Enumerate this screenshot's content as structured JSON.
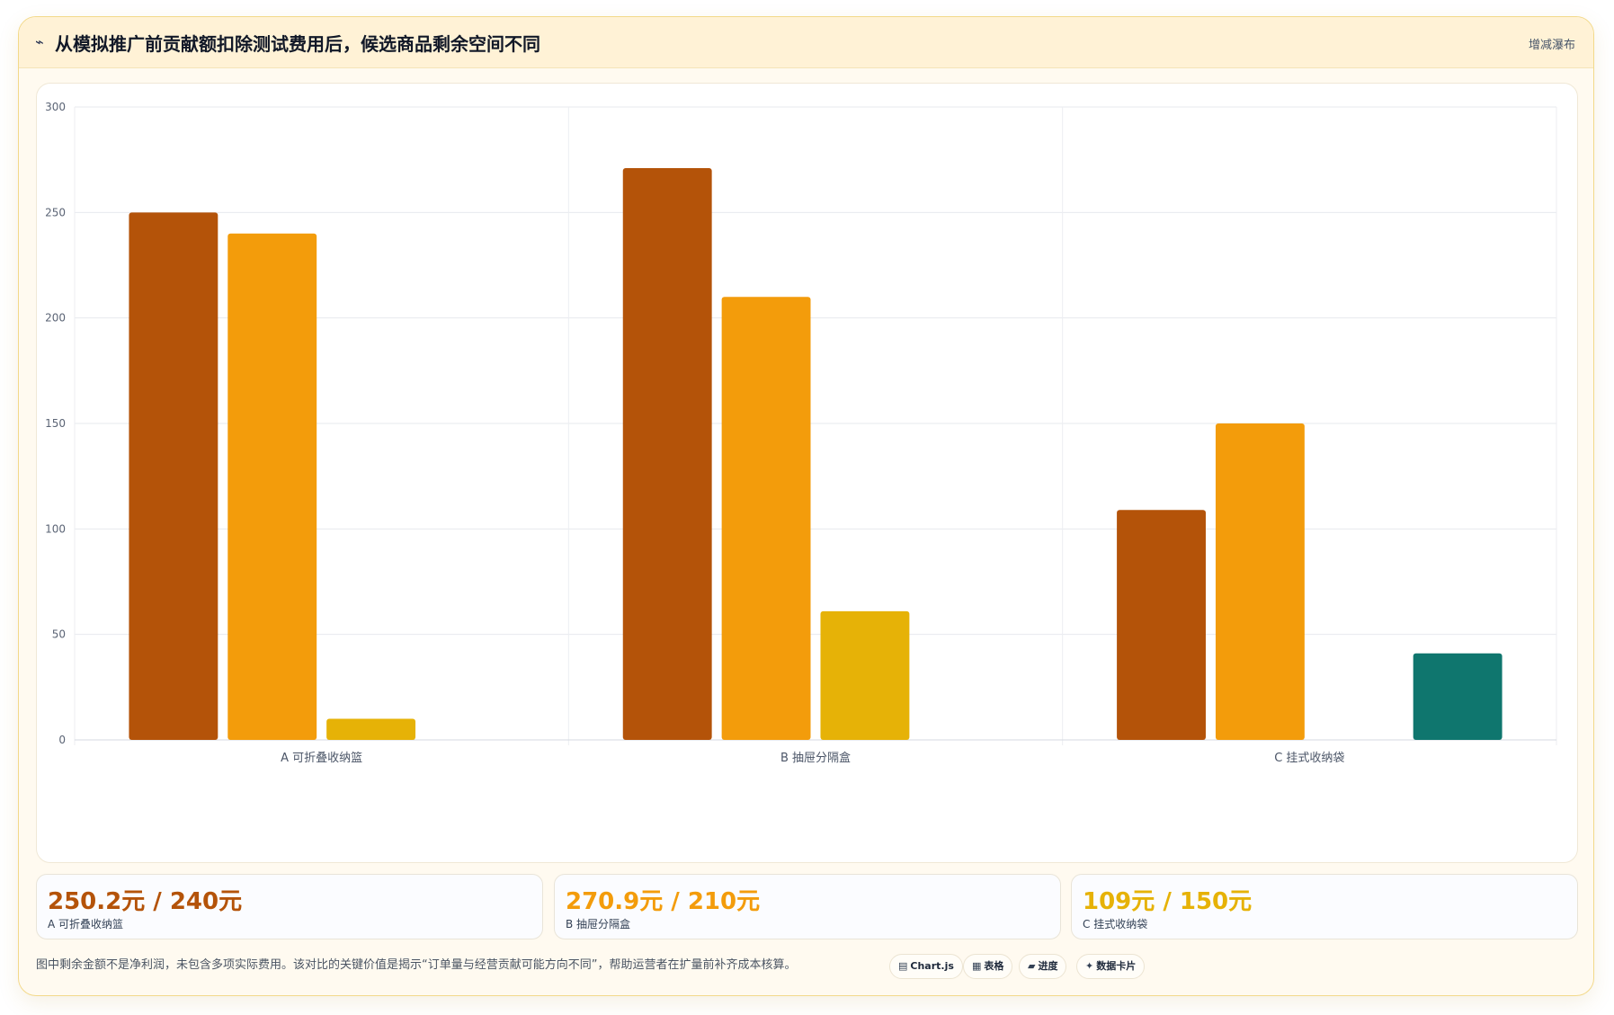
{
  "header": {
    "icon": "trend-line-icon",
    "title": "从模拟推广前贡献额扣除测试费用后，候选商品剩余空间不同",
    "badge": "增减瀑布"
  },
  "colors": {
    "dark_orange": "#b45309",
    "orange": "#f39c0b",
    "gold": "#e6b207",
    "teal": "#0f766e"
  },
  "chart_data": {
    "type": "bar",
    "categories": [
      "A 可折叠收纳篮",
      "B 抽屉分隔盒",
      "C 挂式收纳袋"
    ],
    "series": [
      {
        "values": [
          250,
          271,
          109
        ],
        "color": "#b45309"
      },
      {
        "values": [
          240,
          210,
          150
        ],
        "color": "#f39c0b"
      },
      {
        "values": [
          10,
          61,
          0
        ],
        "color": "#e6b207"
      },
      {
        "values": [
          0,
          0,
          41
        ],
        "color": "#0f766e"
      }
    ],
    "ylim": [
      0,
      300
    ],
    "yticks": [
      0,
      50,
      100,
      150,
      200,
      250,
      300
    ],
    "grid": true,
    "legend": "none",
    "title": "",
    "xlabel": "",
    "ylabel": ""
  },
  "stats": [
    {
      "value": "250.2元 / 240元",
      "label": "A 可折叠收纳篮",
      "color": "#b45309"
    },
    {
      "value": "270.9元 / 210元",
      "label": "B 抽屉分隔盒",
      "color": "#f39c0b"
    },
    {
      "value": "109元 / 150元",
      "label": "C 挂式收纳袋",
      "color": "#e6b207"
    }
  ],
  "footer": {
    "note": "图中剩余金额不是净利润，未包含多项实际费用。该对比的关键价值是揭示“订单量与经营贡献可能方向不同”，帮助运营者在扩量前补齐成本核算。",
    "chips": [
      {
        "icon": "chart-icon",
        "glyph": "▤",
        "label": "Chart.js"
      },
      {
        "icon": "table-icon",
        "glyph": "▦",
        "label": "表格"
      },
      {
        "icon": "progress-icon",
        "glyph": "▰",
        "label": "进度"
      },
      {
        "icon": "sparkle-icon",
        "glyph": "✦",
        "label": "数据卡片"
      }
    ]
  }
}
